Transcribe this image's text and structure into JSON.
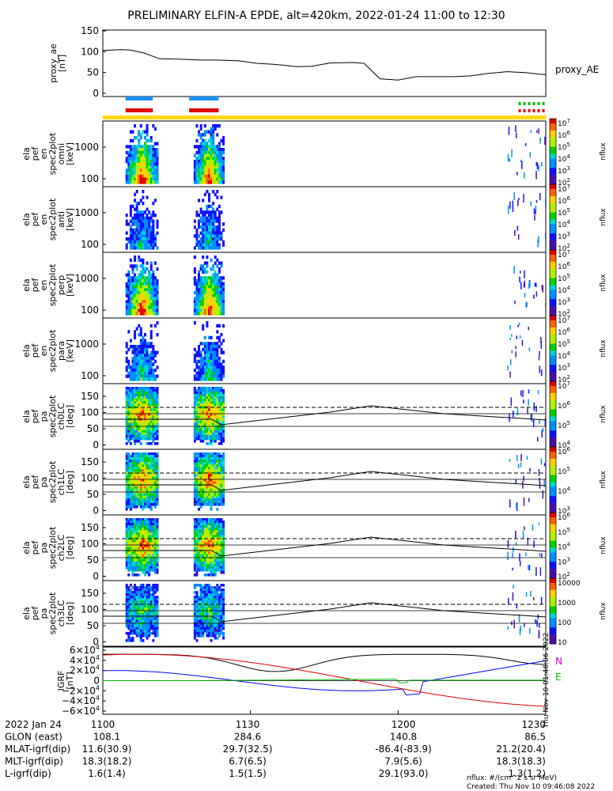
{
  "title": "PRELIMINARY ELFIN-A EPDE, alt=420km, 2022-01-24 11:00 to 12:30",
  "colors": {
    "blue_bar": "#1e90ff",
    "red_bar": "#e00000",
    "green_bar": "#00c000",
    "yellow_bar": "#ffd700",
    "bfield_black": "#000000",
    "bfield_blue": "#0000ff",
    "bfield_red": "#dd0000",
    "bfield_green": "#00bb00"
  },
  "legend_labels": {
    "n": "N",
    "e": "E"
  },
  "chart_data": [
    {
      "type": "line",
      "name": "proxy_ae",
      "ylabel": [
        "proxy_ae",
        "[nT]"
      ],
      "legend": "proxy_AE",
      "ylim": [
        0,
        150
      ],
      "yticks": [
        "150",
        "100",
        "50",
        "0"
      ],
      "x_minutes": [
        0,
        8,
        12,
        18,
        25,
        33,
        43,
        50,
        60,
        68,
        75,
        79,
        85,
        92,
        100,
        110,
        115,
        122,
        130,
        138,
        145,
        155,
        162,
        170,
        178,
        186,
        192,
        195
      ],
      "values": [
        103,
        105,
        104,
        97,
        83,
        82,
        80,
        80,
        78,
        72,
        70,
        68,
        64,
        65,
        73,
        74,
        72,
        35,
        32,
        40,
        40,
        40,
        42,
        48,
        52,
        50,
        46,
        45
      ]
    },
    {
      "type": "heatmap",
      "name": "en-omni",
      "ylabel": [
        "ela",
        "pef",
        "en",
        "spec2plot",
        "omni",
        "[keV]"
      ],
      "yticks": [
        "1000",
        "100"
      ],
      "colorbar": {
        "label": "nflux",
        "ticks": [
          "10^7",
          "10^6",
          "10^5",
          "10^4",
          "10^3",
          "10^2"
        ]
      }
    },
    {
      "type": "heatmap",
      "name": "en-anti",
      "ylabel": [
        "ela",
        "pef",
        "en",
        "spec2plot",
        "anti",
        "[keV]"
      ],
      "yticks": [
        "1000",
        "100"
      ],
      "colorbar": {
        "label": "nflux",
        "ticks": [
          "10^7",
          "10^6",
          "10^5",
          "10^4",
          "10^3",
          "10^2"
        ]
      }
    },
    {
      "type": "heatmap",
      "name": "en-perp",
      "ylabel": [
        "ela",
        "pef",
        "en",
        "spec2plot",
        "perp",
        "[keV]"
      ],
      "yticks": [
        "1000",
        "100"
      ],
      "colorbar": {
        "label": "nflux",
        "ticks": [
          "10^7",
          "10^6",
          "10^5",
          "10^4",
          "10^3",
          "10^2"
        ]
      }
    },
    {
      "type": "heatmap",
      "name": "en-para",
      "ylabel": [
        "ela",
        "pef",
        "en",
        "spec2plot",
        "para",
        "[keV]"
      ],
      "yticks": [
        "1000",
        "100"
      ],
      "colorbar": {
        "label": "nflux",
        "ticks": [
          "10^7",
          "10^6",
          "10^5",
          "10^4",
          "10^3",
          "10^2"
        ]
      }
    },
    {
      "type": "heatmap",
      "name": "pa-ch0",
      "ylabel": [
        "ela",
        "pef",
        "pa",
        "spec2plot",
        "ch0LC",
        "[deg]"
      ],
      "yticks": [
        "150",
        "100",
        "50",
        "0"
      ],
      "colorbar": {
        "label": "nflux",
        "ticks": [
          "10^7",
          "10^6",
          "10^5",
          "10^4"
        ]
      }
    },
    {
      "type": "heatmap",
      "name": "pa-ch1",
      "ylabel": [
        "ela",
        "pef",
        "pa",
        "spec2plot",
        "ch1LC",
        "[deg]"
      ],
      "yticks": [
        "150",
        "100",
        "50",
        "0"
      ],
      "colorbar": {
        "label": "nflux",
        "ticks": [
          "10^6",
          "10^5",
          "10^4",
          "10^3"
        ]
      }
    },
    {
      "type": "heatmap",
      "name": "pa-ch2",
      "ylabel": [
        "ela",
        "pef",
        "pa",
        "spec2plot",
        "ch2LC",
        "[deg]"
      ],
      "yticks": [
        "150",
        "100",
        "50",
        "0"
      ],
      "colorbar": {
        "label": "nflux",
        "ticks": [
          "10^6",
          "10^5",
          "10^4",
          "10^3",
          "10^2"
        ]
      }
    },
    {
      "type": "heatmap",
      "name": "pa-ch3",
      "ylabel": [
        "ela",
        "pef",
        "pa",
        "spec2plot",
        "ch3LC",
        "[deg]"
      ],
      "yticks": [
        "150",
        "100",
        "50",
        "0"
      ],
      "colorbar": {
        "label": "nflux",
        "ticks": [
          "10000",
          "1000",
          "100",
          "10"
        ]
      }
    },
    {
      "type": "line",
      "name": "igrf",
      "ylabel": [
        "IGRF",
        "[nT]"
      ],
      "ylim": [
        -60000,
        60000
      ],
      "yticks": [
        "6×10^4",
        "4×10^4",
        "2×10^4",
        "0",
        "−2×10^4",
        "−4×10^4",
        "−6×10^4"
      ]
    }
  ],
  "orbit_table": {
    "labels": [
      "2022 Jan 24",
      "GLON (east)",
      "MLAT-igrf(dip)",
      "MLT-igrf(dip)",
      "L-igrf(dip)"
    ],
    "columns": [
      {
        "time": "1100",
        "values": [
          "108.1",
          "11.6(30.9)",
          "18.3(18.2)",
          "1.6(1.4)"
        ]
      },
      {
        "time": "1130",
        "values": [
          "284.6",
          "29.7(32.5)",
          "6.7(6.5)",
          "1.5(1.5)"
        ]
      },
      {
        "time": "1200",
        "values": [
          "140.8",
          "-86.4(-83.9)",
          "7.9(5.6)",
          "29.1(93.0)"
        ]
      },
      {
        "time": "1230",
        "values": [
          "86.5",
          "21.2(20.4)",
          "18.3(18.3)",
          "1.3(1.2)"
        ]
      }
    ]
  },
  "footer": {
    "units": "nflux: #/(cm^2 s sr MeV)",
    "created": "Created: Thu Nov 10 09:46:08 2022",
    "vertical_stamp": "Thu Nov 10 01:46:06 2022"
  }
}
